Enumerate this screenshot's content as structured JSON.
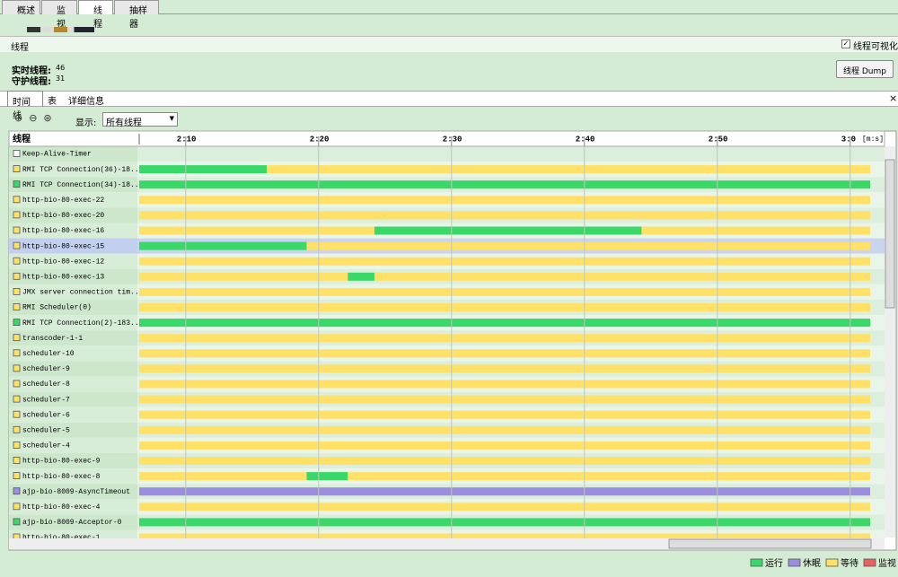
{
  "tabs": [
    "概述",
    "监视",
    "线程",
    "抽样器"
  ],
  "panel_title": "线程",
  "visualize_checkbox": {
    "label": "线程可视化",
    "checked": true
  },
  "live_threads": {
    "label": "实时线程:",
    "value": 46
  },
  "daemon_threads": {
    "label": "守护线程:",
    "value": 31
  },
  "dump_button": "线程 Dump",
  "subtabs": [
    "时间线",
    "表",
    "详细信息"
  ],
  "show_label": "显示:",
  "show_select": "所有线程",
  "timeline": {
    "column_header": "线程",
    "xlim": [
      126.5,
      181.5
    ],
    "xticks": [
      {
        "value": 130,
        "label": "2:10"
      },
      {
        "value": 140,
        "label": "2:20"
      },
      {
        "value": 150,
        "label": "2:30"
      },
      {
        "value": 160,
        "label": "2:40"
      },
      {
        "value": 170,
        "label": "2:50"
      },
      {
        "value": 180,
        "label": "3:0"
      }
    ],
    "unit": "[m:s]",
    "threads": [
      {
        "name": "Keep-Alive-Timer",
        "state": null,
        "segments": []
      },
      {
        "name": "RMI TCP Connection(36)-18...",
        "state": "等待",
        "segments": [
          {
            "state": "运行",
            "start": 126.5,
            "end": 136.1
          },
          {
            "state": "等待",
            "start": 136.1,
            "end": 181.5
          }
        ]
      },
      {
        "name": "RMI TCP Connection(34)-18...",
        "state": "运行",
        "segments": [
          {
            "state": "运行",
            "start": 126.5,
            "end": 181.5
          }
        ]
      },
      {
        "name": "http-bio-80-exec-22",
        "state": "等待",
        "segments": [
          {
            "state": "等待",
            "start": 126.5,
            "end": 181.5
          }
        ]
      },
      {
        "name": "http-bio-80-exec-20",
        "state": "等待",
        "segments": [
          {
            "state": "等待",
            "start": 126.5,
            "end": 181.5
          }
        ]
      },
      {
        "name": "http-bio-80-exec-16",
        "state": "等待",
        "segments": [
          {
            "state": "等待",
            "start": 126.5,
            "end": 144.2
          },
          {
            "state": "运行",
            "start": 144.2,
            "end": 164.3
          },
          {
            "state": "等待",
            "start": 164.3,
            "end": 181.5
          }
        ]
      },
      {
        "name": "http-bio-80-exec-15",
        "state": "等待",
        "selected": true,
        "segments": [
          {
            "state": "运行",
            "start": 126.5,
            "end": 139.1
          },
          {
            "state": "等待",
            "start": 139.1,
            "end": 181.5
          }
        ]
      },
      {
        "name": "http-bio-80-exec-12",
        "state": "等待",
        "segments": [
          {
            "state": "等待",
            "start": 126.5,
            "end": 181.5
          }
        ]
      },
      {
        "name": "http-bio-80-exec-13",
        "state": "等待",
        "segments": [
          {
            "state": "等待",
            "start": 126.5,
            "end": 142.2
          },
          {
            "state": "运行",
            "start": 142.2,
            "end": 144.2
          },
          {
            "state": "等待",
            "start": 144.2,
            "end": 181.5
          }
        ]
      },
      {
        "name": "JMX server connection tim...",
        "state": "等待",
        "segments": [
          {
            "state": "等待",
            "start": 126.5,
            "end": 181.5
          }
        ]
      },
      {
        "name": "RMI Scheduler(0)",
        "state": "等待",
        "segments": [
          {
            "state": "等待",
            "start": 126.5,
            "end": 181.5
          }
        ]
      },
      {
        "name": "RMI TCP Connection(2)-183...",
        "state": "运行",
        "segments": [
          {
            "state": "运行",
            "start": 126.5,
            "end": 181.5
          }
        ]
      },
      {
        "name": "transcoder-1-1",
        "state": "等待",
        "segments": [
          {
            "state": "等待",
            "start": 126.5,
            "end": 181.5
          }
        ]
      },
      {
        "name": "scheduler-10",
        "state": "等待",
        "segments": [
          {
            "state": "等待",
            "start": 126.5,
            "end": 181.5
          }
        ]
      },
      {
        "name": "scheduler-9",
        "state": "等待",
        "segments": [
          {
            "state": "等待",
            "start": 126.5,
            "end": 181.5
          }
        ]
      },
      {
        "name": "scheduler-8",
        "state": "等待",
        "segments": [
          {
            "state": "等待",
            "start": 126.5,
            "end": 181.5
          }
        ]
      },
      {
        "name": "scheduler-7",
        "state": "等待",
        "segments": [
          {
            "state": "等待",
            "start": 126.5,
            "end": 181.5
          }
        ]
      },
      {
        "name": "scheduler-6",
        "state": "等待",
        "segments": [
          {
            "state": "等待",
            "start": 126.5,
            "end": 181.5
          }
        ]
      },
      {
        "name": "scheduler-5",
        "state": "等待",
        "segments": [
          {
            "state": "等待",
            "start": 126.5,
            "end": 181.5
          }
        ]
      },
      {
        "name": "scheduler-4",
        "state": "等待",
        "segments": [
          {
            "state": "等待",
            "start": 126.5,
            "end": 181.5
          }
        ]
      },
      {
        "name": "http-bio-80-exec-9",
        "state": "等待",
        "segments": [
          {
            "state": "等待",
            "start": 126.5,
            "end": 181.5
          }
        ]
      },
      {
        "name": "http-bio-80-exec-8",
        "state": "等待",
        "segments": [
          {
            "state": "等待",
            "start": 126.5,
            "end": 139.1
          },
          {
            "state": "运行",
            "start": 139.1,
            "end": 142.2
          },
          {
            "state": "等待",
            "start": 142.2,
            "end": 181.5
          }
        ]
      },
      {
        "name": "ajp-bio-8009-AsyncTimeout",
        "state": "休眠",
        "segments": [
          {
            "state": "休眠",
            "start": 126.5,
            "end": 181.5
          }
        ]
      },
      {
        "name": "http-bio-80-exec-4",
        "state": "等待",
        "segments": [
          {
            "state": "等待",
            "start": 126.5,
            "end": 181.5
          }
        ]
      },
      {
        "name": "ajp-bio-8009-Acceptor-0",
        "state": "运行",
        "segments": [
          {
            "state": "运行",
            "start": 126.5,
            "end": 181.5
          }
        ]
      },
      {
        "name": "http-bio-80-exec-1",
        "state": "等待",
        "segments": [
          {
            "state": "等待",
            "start": 126.5,
            "end": 181.5
          }
        ]
      }
    ]
  },
  "legend": [
    {
      "name": "运行",
      "color": "#3ad868"
    },
    {
      "name": "休眠",
      "color": "#9b8ee0"
    },
    {
      "name": "等待",
      "color": "#ffe168"
    },
    {
      "name": "监视",
      "color": "#e86262"
    }
  ]
}
